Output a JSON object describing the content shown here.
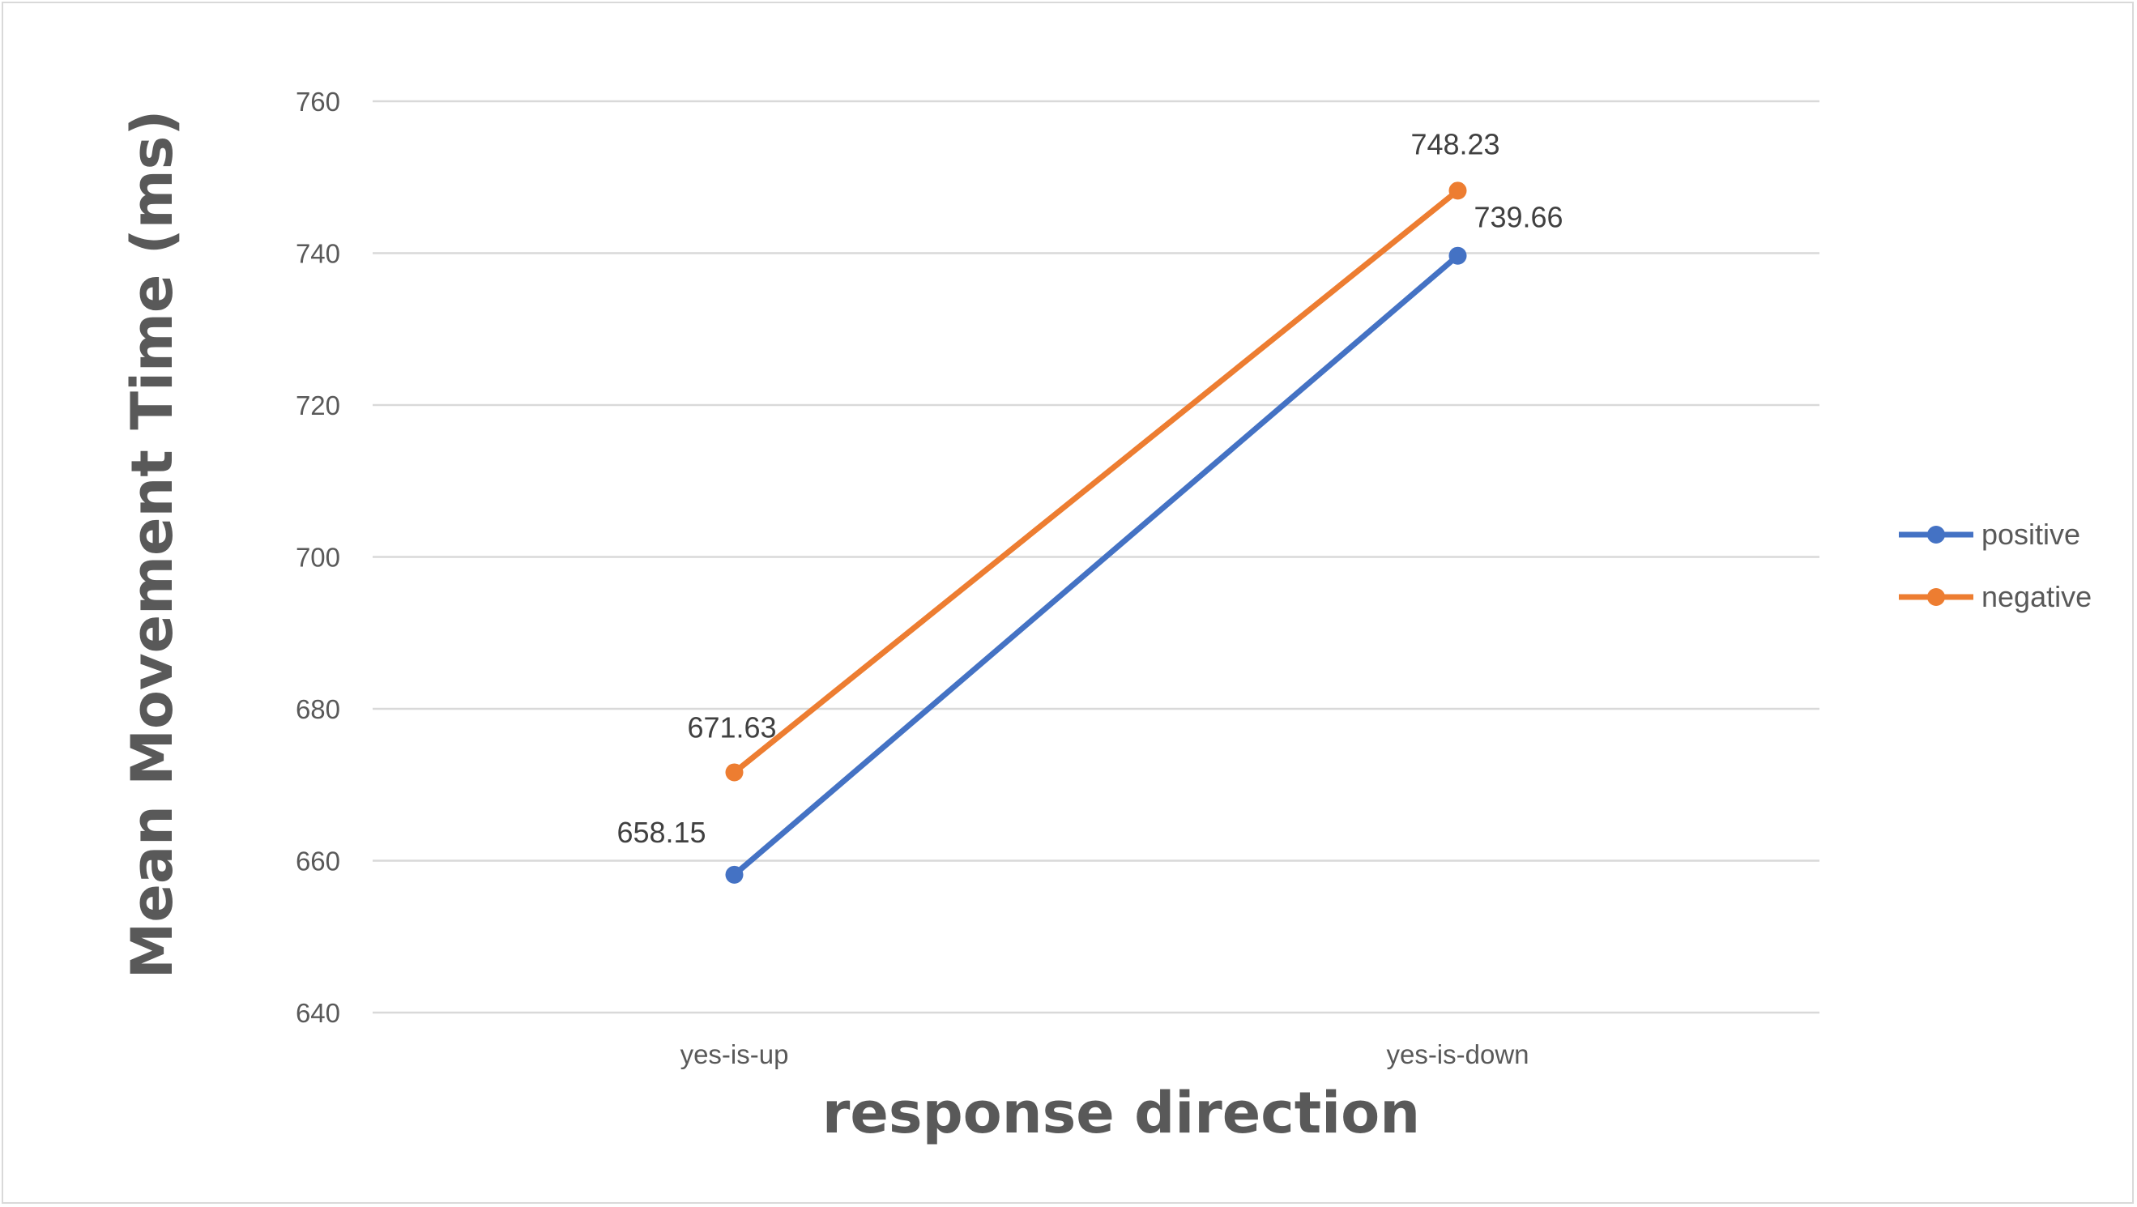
{
  "chart_data": {
    "type": "line",
    "title": "",
    "xlabel": "response direction",
    "ylabel": "Mean Movement Time (ms)",
    "categories": [
      "yes-is-up",
      "yes-is-down"
    ],
    "ylim": [
      640,
      760
    ],
    "yticks": [
      640,
      660,
      680,
      700,
      720,
      740,
      760
    ],
    "grid": true,
    "legend_position": "right",
    "series": [
      {
        "name": "positive",
        "color": "#4472C4",
        "values": [
          658.15,
          739.66
        ],
        "labels": [
          "658.15",
          "739.66"
        ]
      },
      {
        "name": "negative",
        "color": "#ED7D31",
        "values": [
          671.63,
          748.23
        ],
        "labels": [
          "671.63",
          "748.23"
        ]
      }
    ]
  }
}
